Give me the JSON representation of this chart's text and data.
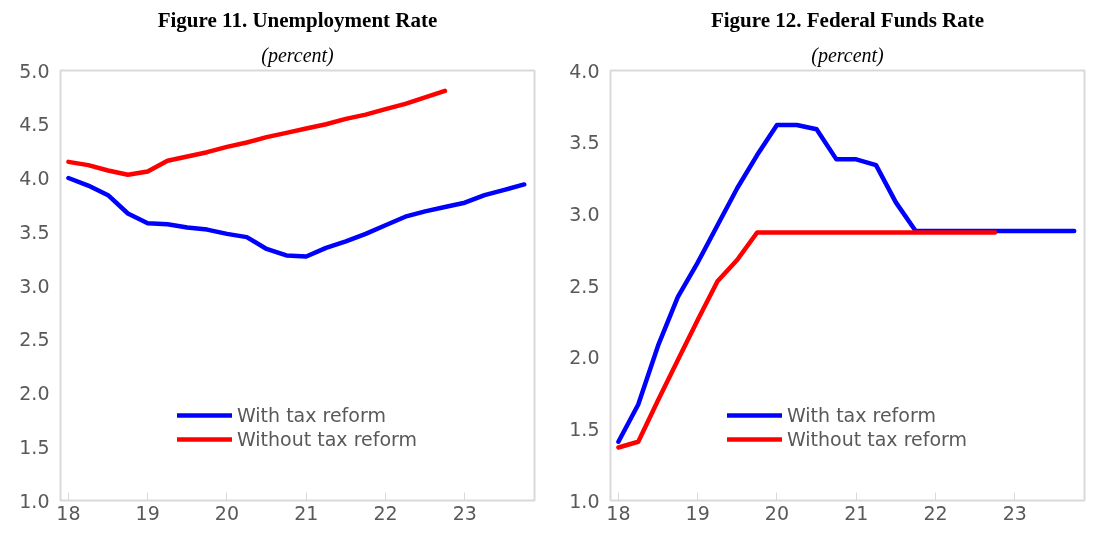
{
  "chart_data": [
    {
      "type": "line",
      "title": "Figure 11. Unemployment Rate",
      "subtitle": "(percent)",
      "x": [
        18,
        18.25,
        18.5,
        18.75,
        19,
        19.25,
        19.5,
        19.75,
        20,
        20.25,
        20.5,
        20.75,
        21,
        21.25,
        21.5,
        21.75,
        22,
        22.25,
        22.5,
        22.75,
        23,
        23.25,
        23.5,
        23.75
      ],
      "series": [
        {
          "name": "With tax reform",
          "color": "#0000ff",
          "values": [
            4.0,
            3.93,
            3.84,
            3.67,
            3.58,
            3.57,
            3.54,
            3.52,
            3.48,
            3.45,
            3.34,
            3.28,
            3.27,
            3.35,
            3.41,
            3.48,
            3.56,
            3.64,
            3.69,
            3.73,
            3.77,
            3.84,
            3.89,
            3.94
          ]
        },
        {
          "name": "Without tax reform",
          "color": "#ff0000",
          "values": [
            4.15,
            4.12,
            4.07,
            4.03,
            4.06,
            4.16,
            4.2,
            4.24,
            4.29,
            4.33,
            4.38,
            4.42,
            4.46,
            4.5,
            4.55,
            4.59,
            4.64,
            4.69,
            4.75,
            4.81,
            null,
            null,
            null,
            null
          ]
        }
      ],
      "xlim": [
        17.9,
        23.88
      ],
      "xticks": [
        18,
        19,
        20,
        21,
        22,
        23
      ],
      "ylim": [
        1.0,
        5.0
      ],
      "yticks": [
        {
          "value": 1,
          "label": "1.0"
        },
        {
          "value": 1.5,
          "label": "1.5"
        },
        {
          "value": 2,
          "label": "2.0"
        },
        {
          "value": 2.5,
          "label": "2.5"
        },
        {
          "value": 3,
          "label": "3.0"
        },
        {
          "value": 3.5,
          "label": "3.5"
        },
        {
          "value": 4,
          "label": "4.0"
        },
        {
          "value": 4.5,
          "label": "4.5"
        },
        {
          "value": 5,
          "label": "5.0"
        }
      ],
      "grid": false,
      "legend": "bottom",
      "line_style": "solid"
    },
    {
      "type": "line",
      "title": "Figure 12. Federal Funds Rate",
      "subtitle": "(percent)",
      "x": [
        18,
        18.25,
        18.5,
        18.75,
        19,
        19.25,
        19.5,
        19.75,
        20,
        20.25,
        20.5,
        20.75,
        21,
        21.25,
        21.5,
        21.75,
        22,
        22.25,
        22.5,
        22.75,
        23,
        23.25,
        23.5,
        23.75
      ],
      "series": [
        {
          "name": "With tax reform",
          "color": "#0000ff",
          "values": [
            1.41,
            1.67,
            2.08,
            2.42,
            2.66,
            2.92,
            3.18,
            3.41,
            3.62,
            3.62,
            3.59,
            3.38,
            3.38,
            3.34,
            3.08,
            2.88,
            2.88,
            2.88,
            2.88,
            2.88,
            2.88,
            2.88,
            2.88,
            2.88
          ]
        },
        {
          "name": "Without tax reform",
          "color": "#ff0000",
          "values": [
            1.37,
            1.41,
            1.7,
            1.98,
            2.26,
            2.53,
            2.68,
            2.87,
            2.87,
            2.87,
            2.87,
            2.87,
            2.87,
            2.87,
            2.87,
            2.87,
            2.87,
            2.87,
            2.87,
            2.87,
            null,
            null,
            null,
            null
          ]
        }
      ],
      "xlim": [
        17.9,
        23.88
      ],
      "xticks": [
        18,
        19,
        20,
        21,
        22,
        23
      ],
      "ylim": [
        1.0,
        4.0
      ],
      "yticks": [
        {
          "value": 1,
          "label": "1.0"
        },
        {
          "value": 1.5,
          "label": "1.5"
        },
        {
          "value": 2,
          "label": "2.0"
        },
        {
          "value": 2.5,
          "label": "2.5"
        },
        {
          "value": 3,
          "label": "3.0"
        },
        {
          "value": 3.5,
          "label": "3.5"
        },
        {
          "value": 4,
          "label": "4.0"
        }
      ],
      "grid": false,
      "legend": "bottom",
      "line_style": "solid"
    }
  ]
}
